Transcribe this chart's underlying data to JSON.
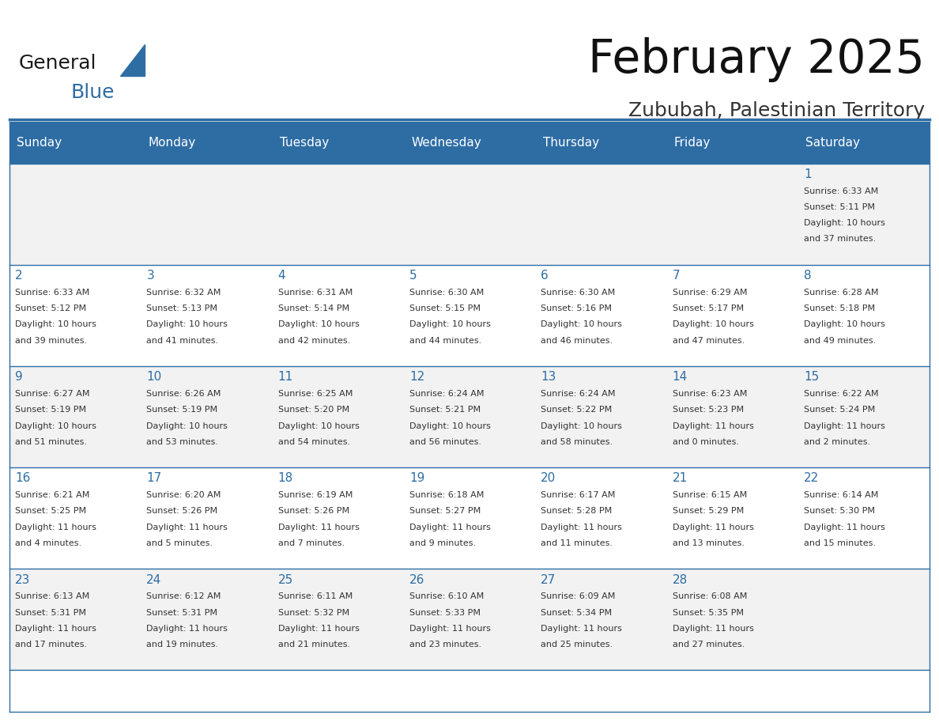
{
  "title": "February 2025",
  "subtitle": "Zububah, Palestinian Territory",
  "header_bg": "#2E6DA4",
  "header_text_color": "#FFFFFF",
  "cell_bg_odd": "#F2F2F2",
  "cell_bg_even": "#FFFFFF",
  "day_number_color": "#2E6DA4",
  "cell_text_color": "#333333",
  "grid_line_color": "#2E6DA4",
  "days_of_week": [
    "Sunday",
    "Monday",
    "Tuesday",
    "Wednesday",
    "Thursday",
    "Friday",
    "Saturday"
  ],
  "calendar": [
    [
      null,
      null,
      null,
      null,
      null,
      null,
      1
    ],
    [
      2,
      3,
      4,
      5,
      6,
      7,
      8
    ],
    [
      9,
      10,
      11,
      12,
      13,
      14,
      15
    ],
    [
      16,
      17,
      18,
      19,
      20,
      21,
      22
    ],
    [
      23,
      24,
      25,
      26,
      27,
      28,
      null
    ]
  ],
  "cell_data": {
    "1": [
      "Sunrise: 6:33 AM",
      "Sunset: 5:11 PM",
      "Daylight: 10 hours",
      "and 37 minutes."
    ],
    "2": [
      "Sunrise: 6:33 AM",
      "Sunset: 5:12 PM",
      "Daylight: 10 hours",
      "and 39 minutes."
    ],
    "3": [
      "Sunrise: 6:32 AM",
      "Sunset: 5:13 PM",
      "Daylight: 10 hours",
      "and 41 minutes."
    ],
    "4": [
      "Sunrise: 6:31 AM",
      "Sunset: 5:14 PM",
      "Daylight: 10 hours",
      "and 42 minutes."
    ],
    "5": [
      "Sunrise: 6:30 AM",
      "Sunset: 5:15 PM",
      "Daylight: 10 hours",
      "and 44 minutes."
    ],
    "6": [
      "Sunrise: 6:30 AM",
      "Sunset: 5:16 PM",
      "Daylight: 10 hours",
      "and 46 minutes."
    ],
    "7": [
      "Sunrise: 6:29 AM",
      "Sunset: 5:17 PM",
      "Daylight: 10 hours",
      "and 47 minutes."
    ],
    "8": [
      "Sunrise: 6:28 AM",
      "Sunset: 5:18 PM",
      "Daylight: 10 hours",
      "and 49 minutes."
    ],
    "9": [
      "Sunrise: 6:27 AM",
      "Sunset: 5:19 PM",
      "Daylight: 10 hours",
      "and 51 minutes."
    ],
    "10": [
      "Sunrise: 6:26 AM",
      "Sunset: 5:19 PM",
      "Daylight: 10 hours",
      "and 53 minutes."
    ],
    "11": [
      "Sunrise: 6:25 AM",
      "Sunset: 5:20 PM",
      "Daylight: 10 hours",
      "and 54 minutes."
    ],
    "12": [
      "Sunrise: 6:24 AM",
      "Sunset: 5:21 PM",
      "Daylight: 10 hours",
      "and 56 minutes."
    ],
    "13": [
      "Sunrise: 6:24 AM",
      "Sunset: 5:22 PM",
      "Daylight: 10 hours",
      "and 58 minutes."
    ],
    "14": [
      "Sunrise: 6:23 AM",
      "Sunset: 5:23 PM",
      "Daylight: 11 hours",
      "and 0 minutes."
    ],
    "15": [
      "Sunrise: 6:22 AM",
      "Sunset: 5:24 PM",
      "Daylight: 11 hours",
      "and 2 minutes."
    ],
    "16": [
      "Sunrise: 6:21 AM",
      "Sunset: 5:25 PM",
      "Daylight: 11 hours",
      "and 4 minutes."
    ],
    "17": [
      "Sunrise: 6:20 AM",
      "Sunset: 5:26 PM",
      "Daylight: 11 hours",
      "and 5 minutes."
    ],
    "18": [
      "Sunrise: 6:19 AM",
      "Sunset: 5:26 PM",
      "Daylight: 11 hours",
      "and 7 minutes."
    ],
    "19": [
      "Sunrise: 6:18 AM",
      "Sunset: 5:27 PM",
      "Daylight: 11 hours",
      "and 9 minutes."
    ],
    "20": [
      "Sunrise: 6:17 AM",
      "Sunset: 5:28 PM",
      "Daylight: 11 hours",
      "and 11 minutes."
    ],
    "21": [
      "Sunrise: 6:15 AM",
      "Sunset: 5:29 PM",
      "Daylight: 11 hours",
      "and 13 minutes."
    ],
    "22": [
      "Sunrise: 6:14 AM",
      "Sunset: 5:30 PM",
      "Daylight: 11 hours",
      "and 15 minutes."
    ],
    "23": [
      "Sunrise: 6:13 AM",
      "Sunset: 5:31 PM",
      "Daylight: 11 hours",
      "and 17 minutes."
    ],
    "24": [
      "Sunrise: 6:12 AM",
      "Sunset: 5:31 PM",
      "Daylight: 11 hours",
      "and 19 minutes."
    ],
    "25": [
      "Sunrise: 6:11 AM",
      "Sunset: 5:32 PM",
      "Daylight: 11 hours",
      "and 21 minutes."
    ],
    "26": [
      "Sunrise: 6:10 AM",
      "Sunset: 5:33 PM",
      "Daylight: 11 hours",
      "and 23 minutes."
    ],
    "27": [
      "Sunrise: 6:09 AM",
      "Sunset: 5:34 PM",
      "Daylight: 11 hours",
      "and 25 minutes."
    ],
    "28": [
      "Sunrise: 6:08 AM",
      "Sunset: 5:35 PM",
      "Daylight: 11 hours",
      "and 27 minutes."
    ]
  },
  "logo_general_color": "#1a1a1a",
  "logo_blue_color": "#2E6DA4",
  "logo_triangle_color": "#2E6DA4",
  "title_fontsize": 42,
  "subtitle_fontsize": 18,
  "header_fontsize": 11,
  "day_num_fontsize": 11,
  "cell_fontsize": 8
}
